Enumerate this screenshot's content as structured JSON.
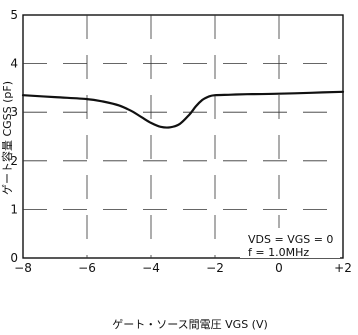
{
  "chart_data": {
    "type": "line",
    "xlabel": "ゲート・ソース間電圧 VGS (V)",
    "ylabel": "ゲート容量 CGSS (pF)",
    "xlim": [
      -8,
      2
    ],
    "ylim": [
      0,
      5
    ],
    "x_ticks": [
      -8,
      -6,
      -4,
      -2,
      0,
      2
    ],
    "x_tick_labels": [
      "−8",
      "−6",
      "−4",
      "−2",
      "0",
      "+2"
    ],
    "y_ticks": [
      0,
      1,
      2,
      3,
      4,
      5
    ],
    "y_tick_labels": [
      "0",
      "1",
      "2",
      "3",
      "4",
      "5"
    ],
    "grid": true,
    "conditions": [
      "VDS = VGS = 0",
      "f = 1.0MHz"
    ],
    "series": [
      {
        "x": [
          -8,
          -7,
          -6,
          -5.5,
          -5,
          -4.6,
          -4.3,
          -4.0,
          -3.7,
          -3.4,
          -3.1,
          -2.8,
          -2.6,
          -2.4,
          -2.2,
          -2.0,
          -1.5,
          -1,
          0,
          1,
          2
        ],
        "y": [
          3.35,
          3.31,
          3.27,
          3.22,
          3.14,
          3.02,
          2.9,
          2.78,
          2.7,
          2.69,
          2.76,
          2.95,
          3.12,
          3.25,
          3.32,
          3.35,
          3.36,
          3.37,
          3.38,
          3.4,
          3.42
        ]
      }
    ]
  }
}
